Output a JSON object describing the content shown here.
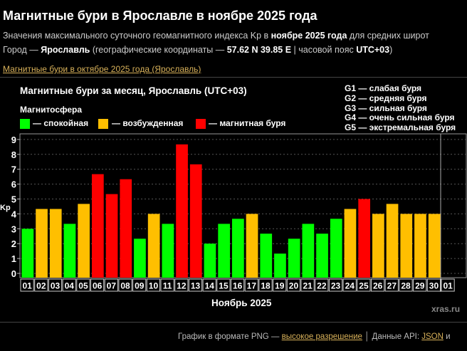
{
  "header": {
    "title": "Магнитные бури в Ярославле в ноябре 2025 года",
    "subtitle_prefix": "Значения максимального суточного геомагнитного индекса Kp в ",
    "subtitle_bold": "ноябре 2025 года",
    "subtitle_suffix": " для средних широт",
    "city_prefix": "Город — ",
    "city_name": "Ярославль",
    "coords_prefix": " (географические координаты — ",
    "coords": "57.62 N 39.85 E",
    "tz_prefix": " | часовой пояс ",
    "tz": "UTC+03",
    "tz_suffix": ")",
    "prev_link": "Магнитные бури в октябре 2025 года (Ярославль)"
  },
  "chart_data": {
    "type": "bar",
    "title": "Магнитные бури за месяц, Ярославль (UTC+03)",
    "xlabel": "Ноябрь 2025",
    "ylabel": "Kp",
    "ylim": [
      0,
      9
    ],
    "yticks": [
      0,
      1,
      2,
      3,
      4,
      5,
      6,
      7,
      8,
      9
    ],
    "grid": true,
    "legend_title": "Магнитосфера",
    "legend": [
      {
        "label": "— спокойная",
        "color": "#00ff00"
      },
      {
        "label": "— возбужденная",
        "color": "#ffbf00"
      },
      {
        "label": "— магнитная буря",
        "color": "#ff0000"
      }
    ],
    "storm_levels": [
      "G1 — слабая буря",
      "G2 — средняя буря",
      "G3 — сильная буря",
      "G4 — очень сильная буря",
      "G5 — экстремальная буря"
    ],
    "categories": [
      "01",
      "02",
      "03",
      "04",
      "05",
      "06",
      "07",
      "08",
      "09",
      "10",
      "11",
      "12",
      "13",
      "14",
      "15",
      "16",
      "17",
      "18",
      "19",
      "20",
      "21",
      "22",
      "23",
      "24",
      "25",
      "26",
      "27",
      "28",
      "29",
      "30",
      "01"
    ],
    "values": [
      3.0,
      4.33,
      4.33,
      3.33,
      4.67,
      6.67,
      5.33,
      6.33,
      2.33,
      4.0,
      3.33,
      8.67,
      7.33,
      2.0,
      3.33,
      3.67,
      4.0,
      2.67,
      1.33,
      2.33,
      3.33,
      2.67,
      3.67,
      4.33,
      5.0,
      4.0,
      4.67,
      4.0,
      4.0,
      4.0,
      null
    ],
    "status": [
      "quiet",
      "active",
      "active",
      "quiet",
      "active",
      "storm",
      "storm",
      "storm",
      "quiet",
      "active",
      "quiet",
      "storm",
      "storm",
      "quiet",
      "quiet",
      "quiet",
      "active",
      "quiet",
      "quiet",
      "quiet",
      "quiet",
      "quiet",
      "quiet",
      "active",
      "storm",
      "active",
      "active",
      "active",
      "active",
      "active",
      null
    ],
    "watermark": "xras.ru"
  },
  "footer": {
    "png_text": "График в формате PNG — ",
    "png_link": "высокое разрешение",
    "sep": " │ ",
    "api_text": "Данные API: ",
    "json_link": "JSON",
    "tail": " и"
  }
}
